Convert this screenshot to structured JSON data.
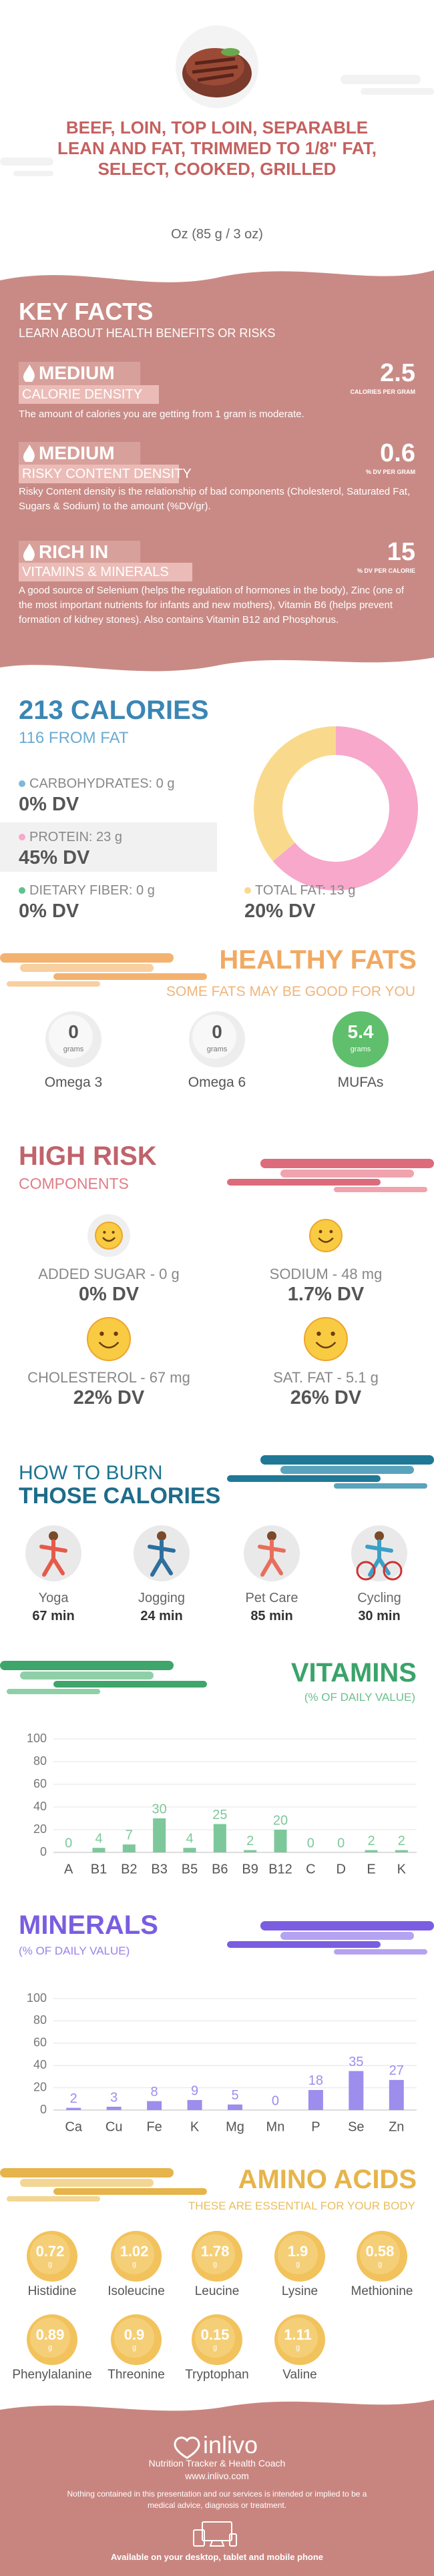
{
  "header": {
    "title": "BEEF, LOIN, TOP LOIN, SEPARABLE LEAN AND FAT, TRIMMED TO 1/8\" FAT, SELECT, COOKED, GRILLED",
    "serving": "Oz (85 g / 3 oz)"
  },
  "key_facts": {
    "title": "KEY FACTS",
    "subtitle": "LEARN ABOUT HEALTH BENEFITS OR RISKS",
    "items": [
      {
        "level": "MEDIUM",
        "label": "CALORIE DENSITY",
        "value": "2.5",
        "unit": "CALORIES PER GRAM",
        "text": "The amount of calories you are getting from 1 gram is moderate."
      },
      {
        "level": "MEDIUM",
        "label": "RISKY CONTENT DENSITY",
        "value": "0.6",
        "unit": "% DV PER GRAM",
        "text": "Risky Content density is the relationship of bad components (Cholesterol, Saturated Fat, Sugars & Sodium) to the amount (%DV/gr)."
      },
      {
        "level": "RICH IN",
        "label": "VITAMINS & MINERALS",
        "value": "15",
        "unit": "% DV PER CALORIE",
        "text": "A good source of Selenium (helps the regulation of hormones in the body), Zinc (one of the most important nutrients for infants and new mothers), Vitamin B6 (helps prevent formation of kidney stones). Also contains Vitamin B12 and Phosphorus."
      }
    ]
  },
  "calories": {
    "title": "213 CALORIES",
    "subtitle": "116 FROM FAT",
    "macros": [
      {
        "label": "CARBOHYDRATES: 0 g",
        "dv": "0% DV",
        "grams": 0,
        "color": "#7cb9da"
      },
      {
        "label": "PROTEIN: 23 g",
        "dv": "45% DV",
        "grams": 23,
        "color": "#f7a8cb"
      },
      {
        "label": "DIETARY FIBER: 0 g",
        "dv": "0% DV",
        "grams": 0,
        "color": "#5fc28c"
      },
      {
        "label": "TOTAL FAT: 13 g",
        "dv": "20% DV",
        "grams": 13,
        "color": "#f9da8c"
      }
    ]
  },
  "healthy_fats": {
    "title": "HEALTHY FATS",
    "subtitle": "SOME FATS MAY BE GOOD FOR YOU",
    "unit": "grams",
    "items": [
      {
        "amount": "0",
        "name": "Omega 3"
      },
      {
        "amount": "0",
        "name": "Omega 6"
      },
      {
        "amount": "5.4",
        "name": "MUFAs"
      }
    ]
  },
  "high_risk": {
    "title": "HIGH RISK",
    "subtitle": "COMPONENTS",
    "items": [
      {
        "label": "ADDED SUGAR - 0 g",
        "dv": "0% DV"
      },
      {
        "label": "SODIUM - 48 mg",
        "dv": "1.7% DV"
      },
      {
        "label": "CHOLESTEROL - 67 mg",
        "dv": "22% DV"
      },
      {
        "label": "SAT. FAT - 5.1 g",
        "dv": "26% DV"
      }
    ]
  },
  "burn": {
    "title_1": "HOW TO BURN",
    "title_2": "THOSE CALORIES",
    "activities": [
      {
        "name": "Yoga",
        "time": "67 min"
      },
      {
        "name": "Jogging",
        "time": "24 min"
      },
      {
        "name": "Pet Care",
        "time": "85 min"
      },
      {
        "name": "Cycling",
        "time": "30 min"
      }
    ]
  },
  "chart_data": [
    {
      "type": "bar",
      "title": "VITAMINS",
      "subtitle": "(% OF DAILY VALUE)",
      "categories": [
        "A",
        "B1",
        "B2",
        "B3",
        "B5",
        "B6",
        "B9",
        "B12",
        "C",
        "D",
        "E",
        "K"
      ],
      "values": [
        0,
        4,
        7,
        30,
        4,
        25,
        2,
        20,
        0,
        0,
        2,
        2
      ],
      "color": "#7dc89b",
      "ylim": [
        0,
        100
      ],
      "yticks": [
        0,
        20,
        40,
        60,
        80,
        100
      ],
      "grid": true
    },
    {
      "type": "bar",
      "title": "MINERALS",
      "subtitle": "(% OF DAILY VALUE)",
      "categories": [
        "Ca",
        "Cu",
        "Fe",
        "K",
        "Mg",
        "Mn",
        "P",
        "Se",
        "Zn"
      ],
      "values": [
        2,
        3,
        8,
        9,
        5,
        0,
        18,
        35,
        27
      ],
      "color": "#9d8ded",
      "ylim": [
        0,
        100
      ],
      "yticks": [
        0,
        20,
        40,
        60,
        80,
        100
      ],
      "grid": true
    }
  ],
  "amino_acids": {
    "title": "AMINO ACIDS",
    "subtitle": "THESE ARE ESSENTIAL FOR YOUR BODY",
    "unit": "g",
    "items": [
      {
        "amount": "0.72",
        "name": "Histidine"
      },
      {
        "amount": "1.02",
        "name": "Isoleucine"
      },
      {
        "amount": "1.78",
        "name": "Leucine"
      },
      {
        "amount": "1.9",
        "name": "Lysine"
      },
      {
        "amount": "0.58",
        "name": "Methionine"
      },
      {
        "amount": "0.89",
        "name": "Phenylalanine"
      },
      {
        "amount": "0.9",
        "name": "Threonine"
      },
      {
        "amount": "0.15",
        "name": "Tryptophan"
      },
      {
        "amount": "1.11",
        "name": "Valine"
      }
    ]
  },
  "footer": {
    "brand": "inlivo",
    "tagline": "Nutrition Tracker & Health Coach",
    "url": "www.inlivo.com",
    "disclaimer": "Nothing contained in this presentation and our services is intended or implied to be a medical advice, diagnosis or treatment.",
    "availability": "Available on your desktop, tablet and mobile phone"
  }
}
